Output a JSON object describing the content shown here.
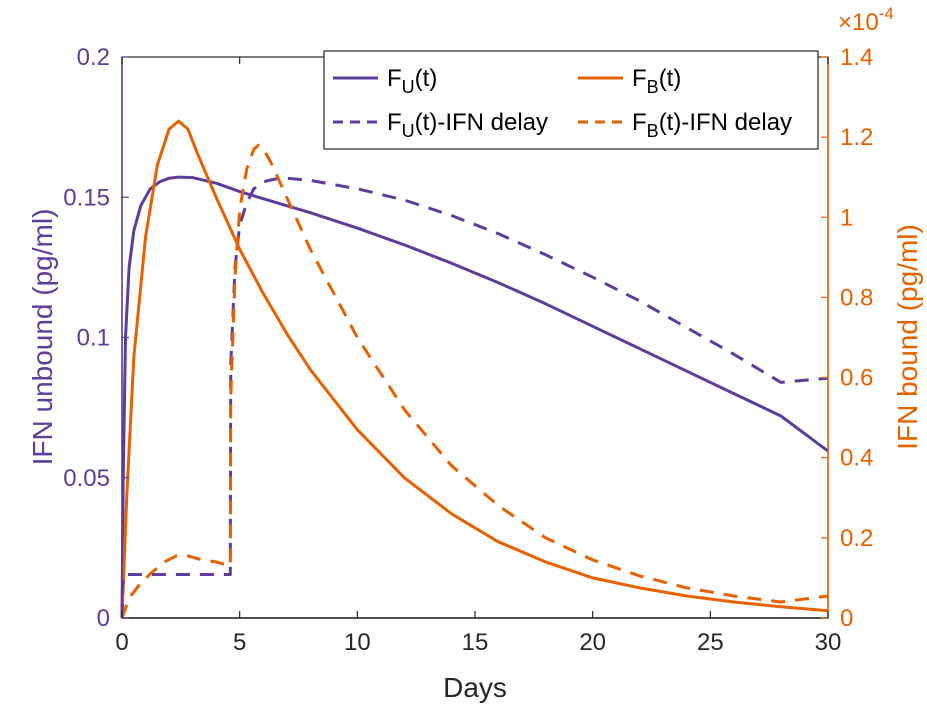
{
  "chart_data": {
    "type": "line",
    "xlabel": "Days",
    "ylabel_left": "IFN unbound (pg/ml)",
    "ylabel_right": "IFN bound (pg/ml)",
    "xlim": [
      0,
      30
    ],
    "ylim_left": [
      0,
      0.2
    ],
    "ylim_right": [
      0,
      1.4
    ],
    "right_axis_exponent": "×10",
    "right_axis_exponent_power": "-4",
    "x_ticks": [
      "0",
      "5",
      "10",
      "15",
      "20",
      "25",
      "30"
    ],
    "y_left_ticks": [
      "0",
      "0.05",
      "0.1",
      "0.15",
      "0.2"
    ],
    "y_right_ticks": [
      "0",
      "0.2",
      "0.4",
      "0.6",
      "0.8",
      "1",
      "1.2",
      "1.4"
    ],
    "legend_position": "top-right",
    "colors": {
      "left_axis": "#5E3C99",
      "right_axis": "#E66100"
    },
    "series": [
      {
        "name": "F_U(t)",
        "label_main": "F",
        "label_sub": "U",
        "label_tail": "(t)",
        "axis": "left",
        "style": "solid",
        "color": "#5E3C99",
        "x": [
          0,
          0.05,
          0.15,
          0.3,
          0.5,
          0.8,
          1.2,
          1.6,
          2.0,
          2.4,
          3,
          4,
          5,
          6,
          7,
          8,
          10,
          12,
          14,
          16,
          18,
          20,
          22,
          24,
          26,
          28,
          30
        ],
        "y": [
          0,
          0.05,
          0.1,
          0.125,
          0.138,
          0.147,
          0.153,
          0.1555,
          0.1568,
          0.1572,
          0.157,
          0.155,
          0.152,
          0.1495,
          0.147,
          0.1445,
          0.139,
          0.133,
          0.1265,
          0.1195,
          0.112,
          0.104,
          0.096,
          0.088,
          0.08,
          0.072,
          0.0595
        ]
      },
      {
        "name": "F_B(t)",
        "label_main": "F",
        "label_sub": "B",
        "label_tail": "(t)",
        "axis": "right",
        "style": "solid",
        "color": "#E66100",
        "x": [
          0,
          0.2,
          0.5,
          1.0,
          1.5,
          2.0,
          2.4,
          2.8,
          3.2,
          4,
          5,
          6,
          7,
          8,
          10,
          12,
          14,
          16,
          18,
          20,
          22,
          24,
          26,
          28,
          30
        ],
        "y": [
          0,
          0.3,
          0.65,
          0.95,
          1.13,
          1.22,
          1.24,
          1.22,
          1.16,
          1.05,
          0.92,
          0.81,
          0.71,
          0.62,
          0.47,
          0.35,
          0.26,
          0.19,
          0.14,
          0.1,
          0.075,
          0.055,
          0.04,
          0.028,
          0.018
        ]
      },
      {
        "name": "F_U(t)-IFN delay",
        "label_main": "F",
        "label_sub": "U",
        "label_tail": "(t)-IFN delay",
        "axis": "left",
        "style": "dashed",
        "color": "#5E3C99",
        "x": [
          0,
          0.02,
          0.06,
          0.1,
          4.6,
          4.62,
          4.8,
          5.0,
          5.3,
          5.6,
          6,
          6.5,
          7,
          8,
          10,
          12,
          14,
          16,
          18,
          20,
          22,
          24,
          26,
          28,
          30
        ],
        "y": [
          0,
          0.01,
          0.0155,
          0.0155,
          0.0155,
          0.09,
          0.125,
          0.14,
          0.148,
          0.153,
          0.1555,
          0.1565,
          0.1568,
          0.156,
          0.153,
          0.149,
          0.1435,
          0.137,
          0.1295,
          0.1215,
          0.113,
          0.1035,
          0.094,
          0.084,
          0.0855
        ]
      },
      {
        "name": "F_B(t)-IFN delay",
        "label_main": "F",
        "label_sub": "B",
        "label_tail": "(t)-IFN delay",
        "axis": "right",
        "style": "dashed",
        "color": "#E66100",
        "x": [
          0,
          0.3,
          0.7,
          1.2,
          1.8,
          2.3,
          2.8,
          3.4,
          4.0,
          4.6,
          4.62,
          4.8,
          5.0,
          5.3,
          5.6,
          5.8,
          6.0,
          6.3,
          7,
          8,
          10,
          12,
          14,
          16,
          18,
          20,
          22,
          24,
          26,
          28,
          30
        ],
        "y": [
          0,
          0.05,
          0.08,
          0.11,
          0.14,
          0.155,
          0.155,
          0.145,
          0.14,
          0.13,
          0.55,
          0.85,
          1.02,
          1.12,
          1.17,
          1.18,
          1.17,
          1.14,
          1.05,
          0.92,
          0.7,
          0.52,
          0.38,
          0.28,
          0.2,
          0.145,
          0.105,
          0.075,
          0.055,
          0.04,
          0.055
        ]
      }
    ]
  }
}
